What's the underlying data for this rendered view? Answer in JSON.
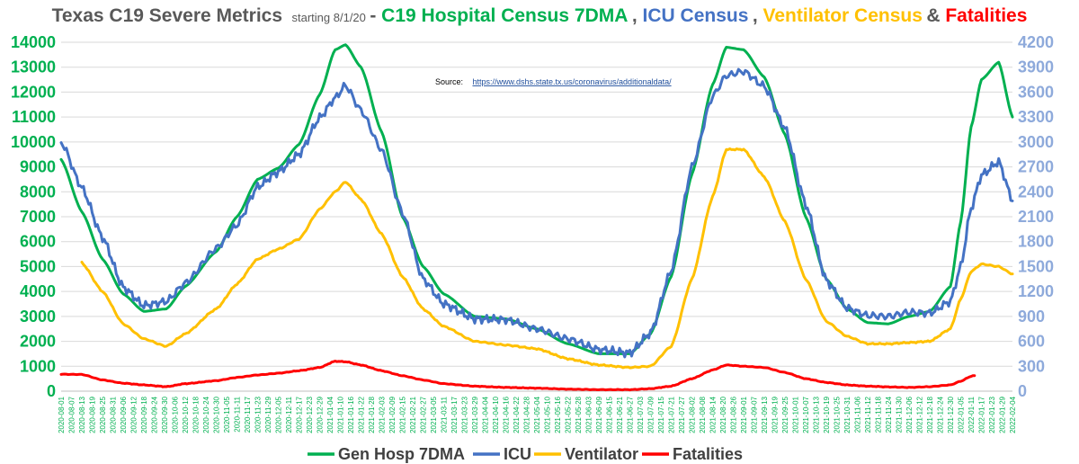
{
  "title": {
    "main": "Texas C19 Severe Metrics",
    "starting": "starting 8/1/20",
    "dash": " - ",
    "hosp": "C19 Hospital Census 7DMA",
    "comma1": ", ",
    "icu": "ICU Census",
    "comma2": ", ",
    "vent": "Ventilator Census",
    "amp": " & ",
    "fatal": "Fatalities"
  },
  "source": {
    "label": "Source:",
    "url": "https://www.dshs.state.tx.us/coronavirus/additionaldata/"
  },
  "colors": {
    "title_gray": "#595959",
    "hosp": "#00b050",
    "icu": "#4472c4",
    "vent": "#ffc000",
    "fatal": "#ff0000",
    "left_axis": "#00b050",
    "right_axis": "#8eaadb",
    "grid": "#d9d9d9"
  },
  "chart_data": {
    "type": "line",
    "x_start": "2020-08-01",
    "x_end": "2022-02-04",
    "x_tick_step_days": 6,
    "ylim_left": [
      0,
      14000
    ],
    "yticks_left": [
      "0",
      "1000",
      "2000",
      "3000",
      "4000",
      "5000",
      "6000",
      "7000",
      "8000",
      "9000",
      "10000",
      "11000",
      "12000",
      "13000",
      "14000"
    ],
    "ylim_right": [
      0,
      4200
    ],
    "yticks_right": [
      "0",
      "300",
      "600",
      "900",
      "1200",
      "1500",
      "1800",
      "2100",
      "2400",
      "2700",
      "3000",
      "3300",
      "3600",
      "3900",
      "4200"
    ],
    "grid": true,
    "legend_position": "bottom",
    "series": [
      {
        "name": "Gen Hosp 7DMA",
        "axis": "left",
        "color": "#00b050",
        "points": [
          [
            "2020-08-01",
            9300
          ],
          [
            "2020-08-13",
            7200
          ],
          [
            "2020-08-25",
            5300
          ],
          [
            "2020-09-06",
            3900
          ],
          [
            "2020-09-18",
            3200
          ],
          [
            "2020-10-01",
            3300
          ],
          [
            "2020-10-12",
            4200
          ],
          [
            "2020-10-30",
            5600
          ],
          [
            "2020-11-11",
            7000
          ],
          [
            "2020-11-23",
            8500
          ],
          [
            "2020-12-05",
            8950
          ],
          [
            "2020-12-17",
            9900
          ],
          [
            "2020-12-29",
            11900
          ],
          [
            "2021-01-07",
            13700
          ],
          [
            "2021-01-13",
            13900
          ],
          [
            "2021-01-22",
            13000
          ],
          [
            "2021-02-03",
            10400
          ],
          [
            "2021-02-15",
            7000
          ],
          [
            "2021-02-27",
            5000
          ],
          [
            "2021-03-11",
            3900
          ],
          [
            "2021-03-29",
            3000
          ],
          [
            "2021-04-16",
            2900
          ],
          [
            "2021-05-04",
            2500
          ],
          [
            "2021-05-22",
            1900
          ],
          [
            "2021-06-09",
            1500
          ],
          [
            "2021-06-27",
            1500
          ],
          [
            "2021-07-09",
            2300
          ],
          [
            "2021-07-21",
            4600
          ],
          [
            "2021-08-02",
            8700
          ],
          [
            "2021-08-14",
            12300
          ],
          [
            "2021-08-22",
            13800
          ],
          [
            "2021-09-01",
            13700
          ],
          [
            "2021-09-13",
            12600
          ],
          [
            "2021-09-25",
            10300
          ],
          [
            "2021-10-07",
            7000
          ],
          [
            "2021-10-19",
            4500
          ],
          [
            "2021-10-31",
            3300
          ],
          [
            "2021-11-12",
            2750
          ],
          [
            "2021-11-24",
            2700
          ],
          [
            "2021-12-06",
            3000
          ],
          [
            "2021-12-18",
            3200
          ],
          [
            "2021-12-30",
            4200
          ],
          [
            "2022-01-05",
            6800
          ],
          [
            "2022-01-11",
            10600
          ],
          [
            "2022-01-17",
            12500
          ],
          [
            "2022-01-27",
            13200
          ],
          [
            "2022-02-04",
            11000
          ]
        ]
      },
      {
        "name": "ICU",
        "axis": "right",
        "color": "#4472c4",
        "points": [
          [
            "2020-08-01",
            3000
          ],
          [
            "2020-08-13",
            2450
          ],
          [
            "2020-08-25",
            1850
          ],
          [
            "2020-09-06",
            1250
          ],
          [
            "2020-09-18",
            1030
          ],
          [
            "2020-10-01",
            1080
          ],
          [
            "2020-10-12",
            1300
          ],
          [
            "2020-10-30",
            1720
          ],
          [
            "2020-11-11",
            2000
          ],
          [
            "2020-11-23",
            2460
          ],
          [
            "2020-12-05",
            2640
          ],
          [
            "2020-12-17",
            2850
          ],
          [
            "2020-12-29",
            3290
          ],
          [
            "2021-01-07",
            3530
          ],
          [
            "2021-01-13",
            3680
          ],
          [
            "2021-01-22",
            3380
          ],
          [
            "2021-02-03",
            2900
          ],
          [
            "2021-02-15",
            2150
          ],
          [
            "2021-02-27",
            1350
          ],
          [
            "2021-03-11",
            1050
          ],
          [
            "2021-03-29",
            870
          ],
          [
            "2021-04-16",
            860
          ],
          [
            "2021-05-04",
            750
          ],
          [
            "2021-05-22",
            630
          ],
          [
            "2021-06-09",
            500
          ],
          [
            "2021-06-27",
            460
          ],
          [
            "2021-07-09",
            700
          ],
          [
            "2021-07-21",
            1450
          ],
          [
            "2021-08-02",
            2700
          ],
          [
            "2021-08-14",
            3550
          ],
          [
            "2021-08-22",
            3800
          ],
          [
            "2021-09-01",
            3850
          ],
          [
            "2021-09-13",
            3670
          ],
          [
            "2021-09-25",
            3170
          ],
          [
            "2021-10-07",
            2250
          ],
          [
            "2021-10-19",
            1330
          ],
          [
            "2021-10-31",
            1000
          ],
          [
            "2021-11-12",
            910
          ],
          [
            "2021-11-24",
            900
          ],
          [
            "2021-12-06",
            950
          ],
          [
            "2021-12-18",
            940
          ],
          [
            "2021-12-30",
            1080
          ],
          [
            "2022-01-05",
            1500
          ],
          [
            "2022-01-11",
            2200
          ],
          [
            "2022-01-17",
            2600
          ],
          [
            "2022-01-27",
            2760
          ],
          [
            "2022-02-04",
            2300
          ]
        ]
      },
      {
        "name": "Ventilator",
        "axis": "left",
        "color": "#ffc000",
        "points": [
          [
            "2020-08-13",
            5150
          ],
          [
            "2020-08-25",
            4000
          ],
          [
            "2020-09-06",
            2700
          ],
          [
            "2020-09-18",
            2100
          ],
          [
            "2020-10-01",
            1800
          ],
          [
            "2020-10-12",
            2300
          ],
          [
            "2020-10-30",
            3300
          ],
          [
            "2020-11-11",
            4300
          ],
          [
            "2020-11-23",
            5300
          ],
          [
            "2020-12-05",
            5700
          ],
          [
            "2020-12-17",
            6100
          ],
          [
            "2020-12-29",
            7300
          ],
          [
            "2021-01-07",
            8000
          ],
          [
            "2021-01-13",
            8400
          ],
          [
            "2021-01-22",
            7700
          ],
          [
            "2021-02-03",
            6300
          ],
          [
            "2021-02-15",
            4600
          ],
          [
            "2021-02-27",
            3300
          ],
          [
            "2021-03-11",
            2600
          ],
          [
            "2021-03-29",
            2000
          ],
          [
            "2021-04-16",
            1850
          ],
          [
            "2021-05-04",
            1700
          ],
          [
            "2021-05-22",
            1300
          ],
          [
            "2021-06-09",
            1050
          ],
          [
            "2021-06-27",
            950
          ],
          [
            "2021-07-09",
            1000
          ],
          [
            "2021-07-21",
            1800
          ],
          [
            "2021-08-02",
            4500
          ],
          [
            "2021-08-14",
            7800
          ],
          [
            "2021-08-22",
            9700
          ],
          [
            "2021-09-01",
            9700
          ],
          [
            "2021-09-13",
            8600
          ],
          [
            "2021-09-25",
            6800
          ],
          [
            "2021-10-07",
            4500
          ],
          [
            "2021-10-19",
            2800
          ],
          [
            "2021-10-31",
            2200
          ],
          [
            "2021-11-12",
            1900
          ],
          [
            "2021-11-24",
            1900
          ],
          [
            "2021-12-06",
            1950
          ],
          [
            "2021-12-18",
            2000
          ],
          [
            "2021-12-30",
            2500
          ],
          [
            "2022-01-05",
            3700
          ],
          [
            "2022-01-11",
            4800
          ],
          [
            "2022-01-17",
            5100
          ],
          [
            "2022-01-27",
            5000
          ],
          [
            "2022-02-04",
            4700
          ]
        ]
      },
      {
        "name": "Fatalities",
        "axis": "left",
        "color": "#ff0000",
        "points": [
          [
            "2020-08-01",
            680
          ],
          [
            "2020-08-13",
            670
          ],
          [
            "2020-08-25",
            450
          ],
          [
            "2020-09-06",
            320
          ],
          [
            "2020-09-18",
            250
          ],
          [
            "2020-10-01",
            180
          ],
          [
            "2020-10-12",
            300
          ],
          [
            "2020-10-30",
            420
          ],
          [
            "2020-11-11",
            550
          ],
          [
            "2020-11-23",
            650
          ],
          [
            "2020-12-05",
            720
          ],
          [
            "2020-12-17",
            820
          ],
          [
            "2020-12-29",
            950
          ],
          [
            "2021-01-07",
            1200
          ],
          [
            "2021-01-13",
            1180
          ],
          [
            "2021-01-22",
            1050
          ],
          [
            "2021-02-03",
            820
          ],
          [
            "2021-02-15",
            620
          ],
          [
            "2021-02-27",
            450
          ],
          [
            "2021-03-11",
            300
          ],
          [
            "2021-03-29",
            200
          ],
          [
            "2021-04-16",
            150
          ],
          [
            "2021-05-04",
            120
          ],
          [
            "2021-05-22",
            80
          ],
          [
            "2021-06-09",
            60
          ],
          [
            "2021-06-27",
            60
          ],
          [
            "2021-07-09",
            100
          ],
          [
            "2021-07-21",
            200
          ],
          [
            "2021-08-02",
            500
          ],
          [
            "2021-08-14",
            850
          ],
          [
            "2021-08-22",
            1050
          ],
          [
            "2021-09-01",
            1000
          ],
          [
            "2021-09-13",
            950
          ],
          [
            "2021-09-25",
            750
          ],
          [
            "2021-10-07",
            500
          ],
          [
            "2021-10-19",
            350
          ],
          [
            "2021-10-31",
            250
          ],
          [
            "2021-11-12",
            200
          ],
          [
            "2021-11-24",
            170
          ],
          [
            "2021-12-06",
            150
          ],
          [
            "2021-12-18",
            180
          ],
          [
            "2021-12-30",
            250
          ],
          [
            "2022-01-05",
            400
          ],
          [
            "2022-01-11",
            600
          ],
          [
            "2022-01-13",
            620
          ]
        ]
      }
    ]
  }
}
